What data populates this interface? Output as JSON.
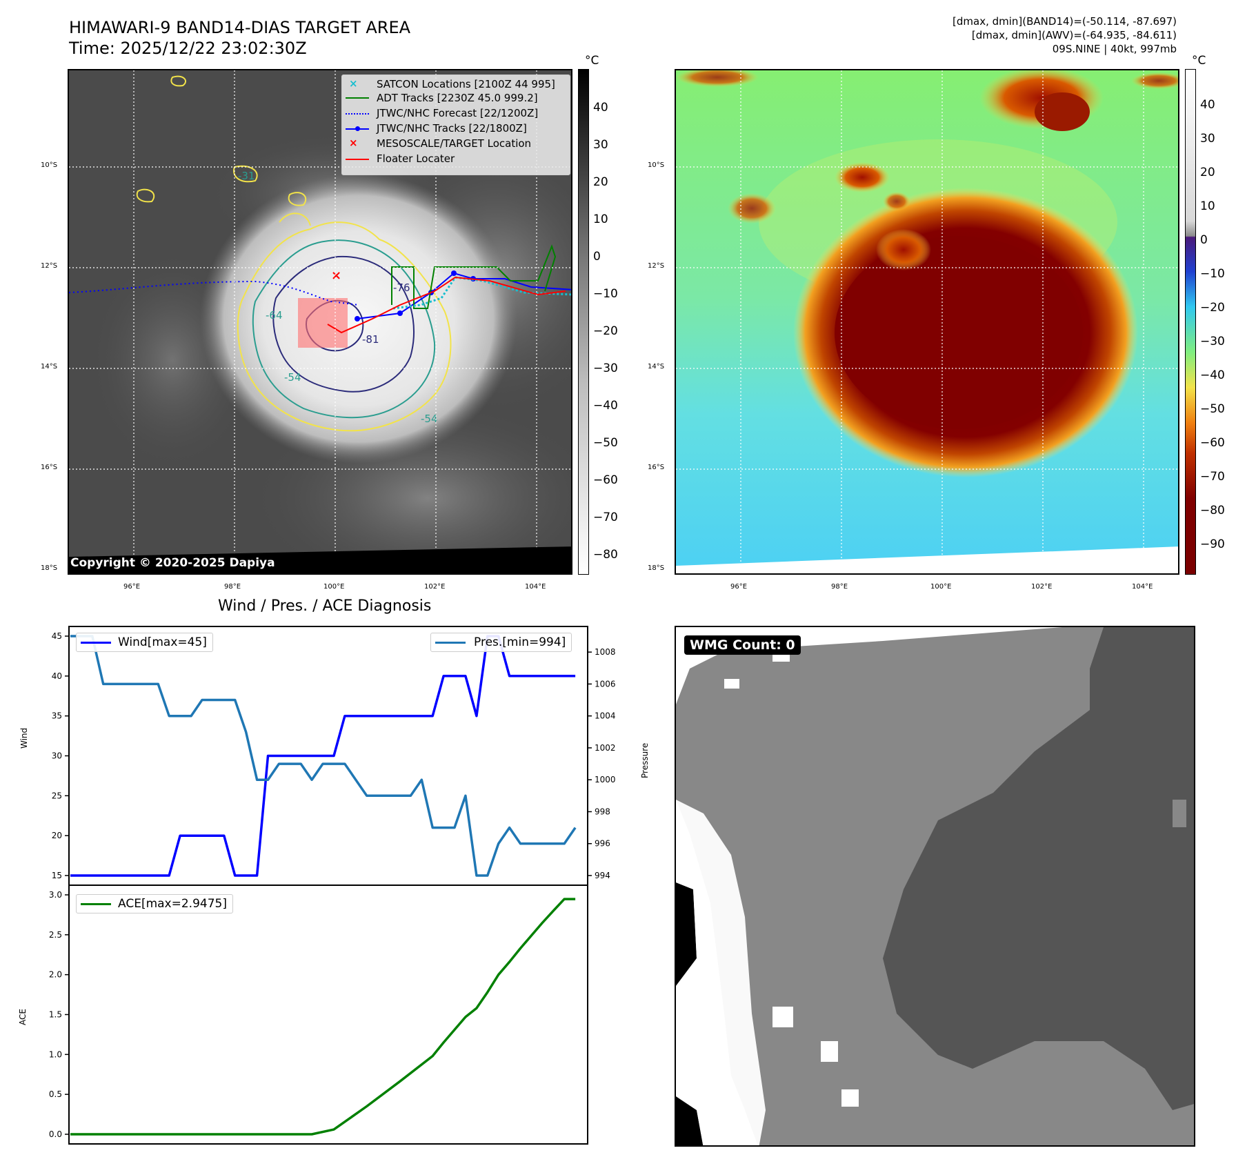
{
  "header": {
    "title_line1": "HIMAWARI-9 BAND14-DIAS TARGET AREA",
    "title_line2": "Time: 2025/12/22 23:02:30Z",
    "info_line1": "[dmax, dmin](BAND14)=(-50.114, -87.697)",
    "info_line2": "[dmax, dmin](AWV)=(-64.935, -84.611)",
    "info_line3": "09S.NINE | 40kt, 997mb"
  },
  "ir_panel": {
    "copyright": "Copyright © 2020-2025 Dapiya",
    "lat_ticks": [
      "10°S",
      "12°S",
      "14°S",
      "16°S",
      "18°S"
    ],
    "lon_ticks": [
      "96°E",
      "98°E",
      "100°E",
      "102°E",
      "104°E"
    ],
    "contour_labels": [
      "-31",
      "-64",
      "-54",
      "-81",
      "-76",
      "-54"
    ],
    "legend": [
      {
        "label": "SATCON Locations [2100Z 44 995]",
        "marker": "x",
        "color": "#17becf"
      },
      {
        "label": "ADT Tracks [2230Z 45.0 999.2]",
        "marker": "line",
        "color": "#008000"
      },
      {
        "label": "JTWC/NHC Forecast [22/1200Z]",
        "marker": "dotted",
        "color": "#0000ff"
      },
      {
        "label": "JTWC/NHC Tracks [22/1800Z]",
        "marker": "line-dot",
        "color": "#0000ff"
      },
      {
        "label": "MESOSCALE/TARGET Location",
        "marker": "x",
        "color": "#ff0000"
      },
      {
        "label": "Floater Locater",
        "marker": "line",
        "color": "#ff0000"
      }
    ],
    "colorbar": {
      "unit": "°C",
      "ticks": [
        "40",
        "30",
        "20",
        "10",
        "0",
        "−10",
        "−20",
        "−30",
        "−40",
        "−50",
        "−60",
        "−70",
        "−80"
      ]
    }
  },
  "color_panel": {
    "lat_ticks": [
      "10°S",
      "12°S",
      "14°S",
      "16°S",
      "18°S"
    ],
    "lon_ticks": [
      "96°E",
      "98°E",
      "100°E",
      "102°E",
      "104°E"
    ],
    "colorbar": {
      "unit": "°C",
      "ticks": [
        "40",
        "30",
        "20",
        "10",
        "0",
        "−10",
        "−20",
        "−30",
        "−40",
        "−50",
        "−60",
        "−70",
        "−80",
        "−90"
      ]
    }
  },
  "wmg_panel": {
    "badge": "WMG Count: 0"
  },
  "diagnosis": {
    "title": "Wind / Pres. / ACE Diagnosis",
    "wind_ylabel": "Wind",
    "pres_ylabel": "Pressure",
    "ace_ylabel": "ACE",
    "wind_legend": "Wind[max=45]",
    "pres_legend": "Pres.[min=994]",
    "ace_legend": "ACE[max=2.9475]"
  },
  "chart_data": [
    {
      "type": "line",
      "title": "Wind / Pres. / ACE Diagnosis",
      "ylabel": "Wind",
      "ylim": [
        15,
        45
      ],
      "yticks": [
        15,
        20,
        25,
        30,
        35,
        40,
        45
      ],
      "series": [
        {
          "name": "Wind[max=45]",
          "axis": "left",
          "color": "#0000ff",
          "x": [
            0,
            3,
            4,
            5,
            6,
            7,
            8,
            9,
            10,
            11,
            12,
            13,
            14,
            15,
            16,
            17,
            18,
            19,
            20,
            21,
            22,
            23,
            24,
            25,
            26,
            27,
            28,
            29,
            30,
            31,
            32,
            33,
            34,
            35,
            36,
            37,
            38,
            39,
            40,
            41,
            42,
            43,
            44,
            45,
            46
          ],
          "values": [
            15,
            15,
            15,
            15,
            15,
            15,
            15,
            15,
            20,
            20,
            20,
            20,
            20,
            15,
            15,
            15,
            30,
            30,
            30,
            30,
            30,
            30,
            30,
            35,
            35,
            35,
            35,
            35,
            35,
            35,
            35,
            35,
            40,
            40,
            40,
            35,
            45,
            45,
            40,
            40,
            40,
            40,
            40,
            40,
            40
          ]
        },
        {
          "name": "Pres.[min=994]",
          "axis": "right",
          "color": "#1f77b4",
          "ylim": [
            994,
            1009
          ],
          "yticks": [
            994,
            996,
            998,
            1000,
            1002,
            1004,
            1006,
            1008
          ],
          "x": [
            0,
            1,
            2,
            3,
            4,
            5,
            6,
            7,
            8,
            9,
            10,
            11,
            12,
            13,
            14,
            15,
            16,
            17,
            18,
            19,
            20,
            21,
            22,
            23,
            24,
            25,
            26,
            27,
            28,
            29,
            30,
            31,
            32,
            33,
            34,
            35,
            36,
            37,
            38,
            39,
            40,
            41,
            42,
            43,
            44,
            45,
            46
          ],
          "values": [
            1009,
            1009,
            1009,
            1006,
            1006,
            1006,
            1006,
            1006,
            1006,
            1004,
            1004,
            1004,
            1005,
            1005,
            1005,
            1005,
            1003,
            1000,
            1000,
            1001,
            1001,
            1001,
            1000,
            1001,
            1001,
            1001,
            1000,
            999,
            999,
            999,
            999,
            999,
            1000,
            997,
            997,
            997,
            999,
            994,
            994,
            996,
            997,
            996,
            996,
            996,
            996,
            996,
            997
          ]
        }
      ]
    },
    {
      "type": "line",
      "ylabel": "ACE",
      "ylim": [
        0,
        3.0
      ],
      "yticks": [
        0.0,
        0.5,
        1.0,
        1.5,
        2.0,
        2.5,
        3.0
      ],
      "series": [
        {
          "name": "ACE[max=2.9475]",
          "color": "#008000",
          "x": [
            0,
            3,
            6,
            9,
            12,
            15,
            18,
            21,
            22,
            24,
            27,
            30,
            33,
            34,
            35,
            36,
            37,
            38,
            39,
            40,
            41,
            42,
            43,
            44,
            45,
            46
          ],
          "values": [
            0,
            0,
            0,
            0,
            0,
            0,
            0,
            0,
            0,
            0.06,
            0.35,
            0.66,
            0.98,
            1.15,
            1.31,
            1.47,
            1.58,
            1.78,
            2.0,
            2.16,
            2.33,
            2.49,
            2.65,
            2.8,
            2.9475,
            2.9475
          ]
        }
      ]
    }
  ]
}
